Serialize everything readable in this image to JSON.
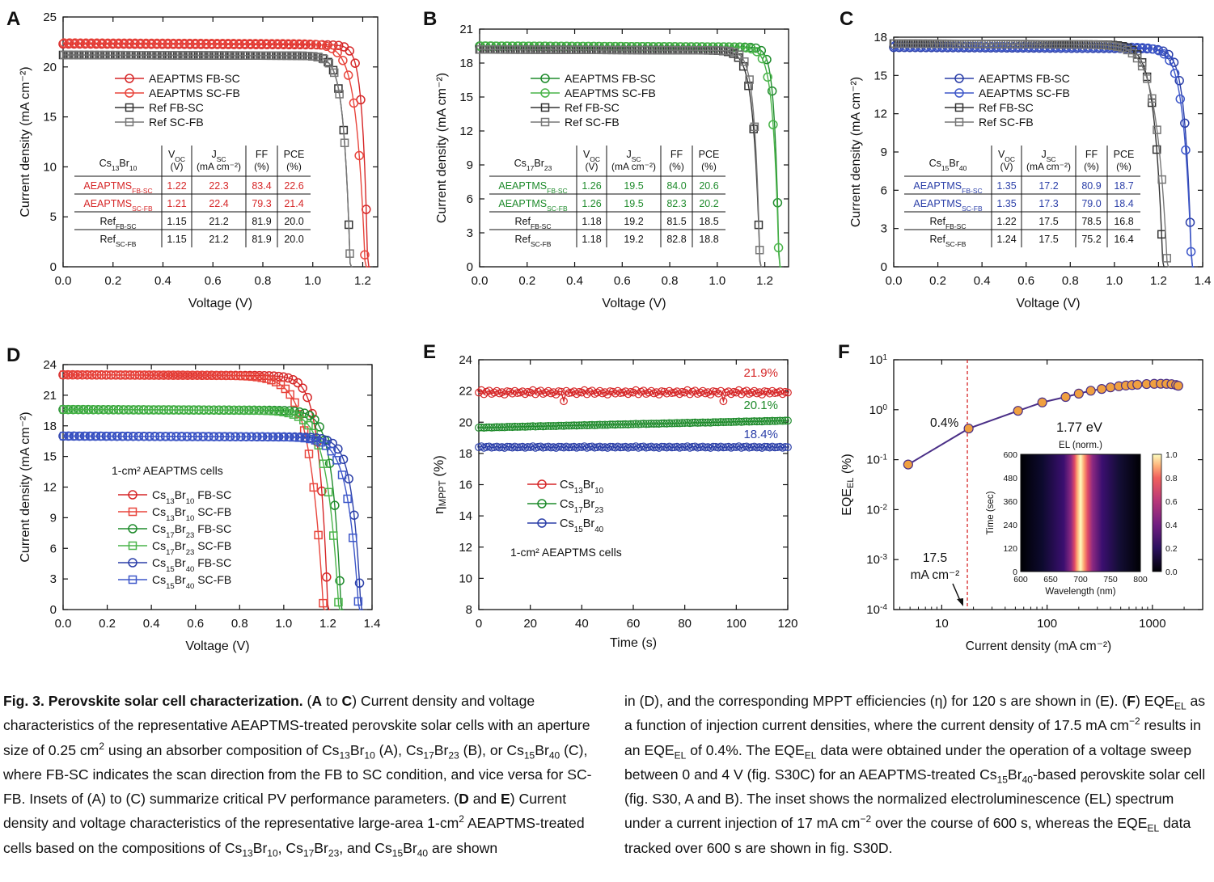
{
  "panels": {
    "A": {
      "letter": "A",
      "xlabel": "Voltage (V)",
      "ylabel": "Current density (mA cm⁻²)",
      "xticks": [
        "0.0",
        "0.2",
        "0.4",
        "0.6",
        "0.8",
        "1.0",
        "1.2"
      ],
      "yticks": [
        "0",
        "5",
        "10",
        "15",
        "20",
        "25"
      ],
      "legend": [
        "AEAPTMS FB-SC",
        "AEAPTMS SC-FB",
        "Ref FB-SC",
        "Ref SC-FB"
      ],
      "table": {
        "corner": [
          "Cs",
          "13",
          "Br",
          "10"
        ],
        "headers": [
          [
            "V",
            "OC",
            "(V)"
          ],
          [
            "J",
            "SC",
            "(mA cm⁻²)"
          ],
          [
            "FF",
            "",
            "(%)"
          ],
          [
            "PCE",
            "",
            "(%)"
          ]
        ],
        "rows": [
          {
            "name": "AEAPTMS",
            "sub": "FB-SC",
            "vals": [
              "1.22",
              "22.3",
              "83.4",
              "22.6"
            ],
            "color": "#d62728"
          },
          {
            "name": "AEAPTMS",
            "sub": "SC-FB",
            "vals": [
              "1.21",
              "22.4",
              "79.3",
              "21.4"
            ],
            "color": "#d62728"
          },
          {
            "name": "Ref",
            "sub": "FB-SC",
            "vals": [
              "1.15",
              "21.2",
              "81.9",
              "20.0"
            ],
            "color": "#111"
          },
          {
            "name": "Ref",
            "sub": "SC-FB",
            "vals": [
              "1.15",
              "21.2",
              "81.9",
              "20.0"
            ],
            "color": "#111"
          }
        ]
      }
    },
    "B": {
      "letter": "B",
      "xlabel": "Voltage (V)",
      "ylabel": "Current density (mA cm⁻²)",
      "xticks": [
        "0.0",
        "0.2",
        "0.4",
        "0.6",
        "0.8",
        "1.0",
        "1.2"
      ],
      "yticks": [
        "0",
        "3",
        "6",
        "9",
        "12",
        "15",
        "18",
        "21"
      ],
      "legend": [
        "AEAPTMS FB-SC",
        "AEAPTMS SC-FB",
        "Ref FB-SC",
        "Ref SC-FB"
      ],
      "table": {
        "corner": [
          "Cs",
          "17",
          "Br",
          "23"
        ],
        "headers": [
          [
            "V",
            "OC",
            "(V)"
          ],
          [
            "J",
            "SC",
            "(mA cm⁻²)"
          ],
          [
            "FF",
            "",
            "(%)"
          ],
          [
            "PCE",
            "",
            "(%)"
          ]
        ],
        "rows": [
          {
            "name": "AEAPTMS",
            "sub": "FB-SC",
            "vals": [
              "1.26",
              "19.5",
              "84.0",
              "20.6"
            ],
            "color": "#1f8b2c"
          },
          {
            "name": "AEAPTMS",
            "sub": "SC-FB",
            "vals": [
              "1.26",
              "19.5",
              "82.3",
              "20.2"
            ],
            "color": "#1f8b2c"
          },
          {
            "name": "Ref",
            "sub": "FB-SC",
            "vals": [
              "1.18",
              "19.2",
              "81.5",
              "18.5"
            ],
            "color": "#111"
          },
          {
            "name": "Ref",
            "sub": "SC-FB",
            "vals": [
              "1.18",
              "19.2",
              "82.8",
              "18.8"
            ],
            "color": "#111"
          }
        ]
      }
    },
    "C": {
      "letter": "C",
      "xlabel": "Voltage (V)",
      "ylabel": "Current density (mA cm⁻²)",
      "xticks": [
        "0.0",
        "0.2",
        "0.4",
        "0.6",
        "0.8",
        "1.0",
        "1.2",
        "1.4"
      ],
      "yticks": [
        "0",
        "3",
        "6",
        "9",
        "12",
        "15",
        "18"
      ],
      "legend": [
        "AEAPTMS FB-SC",
        "AEAPTMS SC-FB",
        "Ref FB-SC",
        "Ref SC-FB"
      ],
      "table": {
        "corner": [
          "Cs",
          "15",
          "Br",
          "40"
        ],
        "headers": [
          [
            "V",
            "OC",
            "(V)"
          ],
          [
            "J",
            "SC",
            "(mA cm⁻²)"
          ],
          [
            "FF",
            "",
            "(%)"
          ],
          [
            "PCE",
            "",
            "(%)"
          ]
        ],
        "rows": [
          {
            "name": "AEAPTMS",
            "sub": "FB-SC",
            "vals": [
              "1.35",
              "17.2",
              "80.9",
              "18.7"
            ],
            "color": "#2b3fa8"
          },
          {
            "name": "AEAPTMS",
            "sub": "SC-FB",
            "vals": [
              "1.35",
              "17.3",
              "79.0",
              "18.4"
            ],
            "color": "#2b3fa8"
          },
          {
            "name": "Ref",
            "sub": "FB-SC",
            "vals": [
              "1.22",
              "17.5",
              "78.5",
              "16.8"
            ],
            "color": "#111"
          },
          {
            "name": "Ref",
            "sub": "SC-FB",
            "vals": [
              "1.24",
              "17.5",
              "75.2",
              "16.4"
            ],
            "color": "#111"
          }
        ]
      }
    },
    "D": {
      "letter": "D",
      "xlabel": "Voltage (V)",
      "ylabel": "Current density (mA cm⁻²)",
      "xticks": [
        "0.0",
        "0.2",
        "0.4",
        "0.6",
        "0.8",
        "1.0",
        "1.2",
        "1.4"
      ],
      "yticks": [
        "0",
        "3",
        "6",
        "9",
        "12",
        "15",
        "18",
        "21",
        "24"
      ],
      "note": "1-cm² AEAPTMS cells",
      "legend": [
        [
          "Cs",
          "13",
          "Br",
          "10",
          " FB-SC"
        ],
        [
          "Cs",
          "13",
          "Br",
          "10",
          " SC-FB"
        ],
        [
          "Cs",
          "17",
          "Br",
          "23",
          " FB-SC"
        ],
        [
          "Cs",
          "17",
          "Br",
          "23",
          " SC-FB"
        ],
        [
          "Cs",
          "15",
          "Br",
          "40",
          " FB-SC"
        ],
        [
          "Cs",
          "15",
          "Br",
          "40",
          " SC-FB"
        ]
      ]
    },
    "E": {
      "letter": "E",
      "xlabel": "Time (s)",
      "ylabel": "η",
      "ylabel_sub": "MPPT",
      "ylabel_unit": " (%)",
      "xticks": [
        "0",
        "20",
        "40",
        "60",
        "80",
        "100",
        "120"
      ],
      "yticks": [
        "8",
        "10",
        "12",
        "14",
        "16",
        "18",
        "20",
        "22",
        "24"
      ],
      "note": "1-cm² AEAPTMS cells",
      "labels": [
        "21.9%",
        "20.1%",
        "18.4%"
      ],
      "legend": [
        [
          "Cs",
          "13",
          "Br",
          "10"
        ],
        [
          "Cs",
          "17",
          "Br",
          "23"
        ],
        [
          "Cs",
          "15",
          "Br",
          "40"
        ]
      ]
    },
    "F": {
      "letter": "F",
      "xlabel": "Current density (mA cm⁻²)",
      "ylabel": "EQE",
      "ylabel_sub": "EL",
      "ylabel_unit": " (%)",
      "xticks": [
        "10",
        "100",
        "1000"
      ],
      "yticks": [
        [
          "10",
          "-4"
        ],
        [
          "10",
          "-3"
        ],
        [
          "10",
          "-2"
        ],
        [
          "10",
          "-1"
        ],
        [
          "10",
          "0"
        ],
        [
          "10",
          "1"
        ]
      ],
      "annot_pct": "0.4%",
      "annot_ev": "1.77 eV",
      "annot_j1": "17.5",
      "annot_j2": "mA cm⁻²",
      "inset": {
        "title": "EL (norm.)",
        "xlabel": "Wavelength (nm)",
        "ylabel": "Time (sec)",
        "xticks": [
          "600",
          "650",
          "700",
          "750",
          "800"
        ],
        "yticks": [
          "0",
          "120",
          "240",
          "360",
          "480",
          "600"
        ],
        "cticks": [
          "0.0",
          "0.2",
          "0.4",
          "0.6",
          "0.8",
          "1.0"
        ]
      }
    }
  },
  "chart_data": [
    {
      "type": "line",
      "panel": "A",
      "xlabel": "Voltage (V)",
      "ylabel": "Current density (mA cm⁻²)",
      "xlim": [
        0,
        1.25
      ],
      "ylim": [
        0,
        25
      ],
      "series": [
        {
          "name": "AEAPTMS FB-SC",
          "color": "#d62728",
          "marker": "circle",
          "jsc": 22.3,
          "voc": 1.22,
          "ff": 83.4
        },
        {
          "name": "AEAPTMS SC-FB",
          "color": "#e8453c",
          "marker": "circle",
          "jsc": 22.4,
          "voc": 1.21,
          "ff": 79.3
        },
        {
          "name": "Ref FB-SC",
          "color": "#333333",
          "marker": "square",
          "jsc": 21.2,
          "voc": 1.15,
          "ff": 81.9
        },
        {
          "name": "Ref SC-FB",
          "color": "#777777",
          "marker": "square",
          "jsc": 21.2,
          "voc": 1.15,
          "ff": 81.9
        }
      ]
    },
    {
      "type": "line",
      "panel": "B",
      "xlabel": "Voltage (V)",
      "ylabel": "Current density (mA cm⁻²)",
      "xlim": [
        0,
        1.3
      ],
      "ylim": [
        0,
        21
      ],
      "series": [
        {
          "name": "AEAPTMS FB-SC",
          "color": "#1f8b2c",
          "marker": "circle",
          "jsc": 19.5,
          "voc": 1.26,
          "ff": 84.0
        },
        {
          "name": "AEAPTMS SC-FB",
          "color": "#49b449",
          "marker": "circle",
          "jsc": 19.5,
          "voc": 1.26,
          "ff": 82.3
        },
        {
          "name": "Ref FB-SC",
          "color": "#333333",
          "marker": "square",
          "jsc": 19.2,
          "voc": 1.18,
          "ff": 81.5
        },
        {
          "name": "Ref SC-FB",
          "color": "#777777",
          "marker": "square",
          "jsc": 19.2,
          "voc": 1.18,
          "ff": 82.8
        }
      ]
    },
    {
      "type": "line",
      "panel": "C",
      "xlabel": "Voltage (V)",
      "ylabel": "Current density (mA cm⁻²)",
      "xlim": [
        0,
        1.4
      ],
      "ylim": [
        0,
        18
      ],
      "series": [
        {
          "name": "AEAPTMS FB-SC",
          "color": "#2b3fa8",
          "marker": "circle",
          "jsc": 17.2,
          "voc": 1.35,
          "ff": 80.9
        },
        {
          "name": "AEAPTMS SC-FB",
          "color": "#3d57c9",
          "marker": "circle",
          "jsc": 17.3,
          "voc": 1.35,
          "ff": 79.0
        },
        {
          "name": "Ref FB-SC",
          "color": "#333333",
          "marker": "square",
          "jsc": 17.5,
          "voc": 1.22,
          "ff": 78.5
        },
        {
          "name": "Ref SC-FB",
          "color": "#777777",
          "marker": "square",
          "jsc": 17.5,
          "voc": 1.24,
          "ff": 75.2
        }
      ]
    },
    {
      "type": "line",
      "panel": "D",
      "xlabel": "Voltage (V)",
      "ylabel": "Current density (mA cm⁻²)",
      "xlim": [
        0,
        1.4
      ],
      "ylim": [
        0,
        24
      ],
      "series": [
        {
          "name": "Cs13Br10 FB-SC",
          "color": "#d62728",
          "marker": "circle",
          "jsc": 23.0,
          "voc": 1.2,
          "ff": 78
        },
        {
          "name": "Cs13Br10 SC-FB",
          "color": "#e8453c",
          "marker": "square",
          "jsc": 23.0,
          "voc": 1.18,
          "ff": 72
        },
        {
          "name": "Cs17Br23 FB-SC",
          "color": "#1f8b2c",
          "marker": "circle",
          "jsc": 19.6,
          "voc": 1.26,
          "ff": 78
        },
        {
          "name": "Cs17Br23 SC-FB",
          "color": "#49b449",
          "marker": "square",
          "jsc": 19.6,
          "voc": 1.25,
          "ff": 74
        },
        {
          "name": "Cs15Br40 FB-SC",
          "color": "#2b3fa8",
          "marker": "circle",
          "jsc": 17.0,
          "voc": 1.35,
          "ff": 78
        },
        {
          "name": "Cs15Br40 SC-FB",
          "color": "#3d57c9",
          "marker": "square",
          "jsc": 17.0,
          "voc": 1.34,
          "ff": 75
        }
      ]
    },
    {
      "type": "line",
      "panel": "E",
      "xlabel": "Time (s)",
      "ylabel": "ηMPPT (%)",
      "xlim": [
        0,
        120
      ],
      "ylim": [
        8,
        24
      ],
      "series": [
        {
          "name": "Cs13Br10",
          "color": "#d62728",
          "level": 21.9
        },
        {
          "name": "Cs17Br23",
          "color": "#1f8b2c",
          "level": 20.1
        },
        {
          "name": "Cs15Br40",
          "color": "#2b3fa8",
          "level": 18.4
        }
      ]
    },
    {
      "type": "line",
      "panel": "F",
      "xlabel": "Current density (mA cm⁻²)",
      "ylabel": "EQEEL (%)",
      "xscale": "log",
      "yscale": "log",
      "xlim": [
        3.5,
        3000
      ],
      "ylim": [
        0.0001,
        10
      ],
      "vline": 17.5,
      "x": [
        4.8,
        18,
        53,
        90,
        150,
        200,
        260,
        330,
        400,
        480,
        560,
        640,
        720,
        800,
        880,
        960,
        1040,
        1120,
        1200,
        1280,
        1360,
        1440,
        1520,
        1600,
        1680,
        1760
      ],
      "y": [
        0.08,
        0.42,
        0.95,
        1.4,
        1.8,
        2.1,
        2.4,
        2.6,
        2.8,
        2.95,
        3.05,
        3.12,
        3.18,
        3.22,
        3.26,
        3.28,
        3.3,
        3.31,
        3.31,
        3.32,
        3.3,
        3.28,
        3.25,
        3.2,
        3.12,
        3.02
      ]
    }
  ],
  "caption": {
    "title": "Fig. 3. Perovskite solar cell characterization.",
    "col1": [
      {
        "t": "b",
        "v": " ("
      },
      {
        "t": "bb",
        "v": "A"
      },
      {
        "t": "n",
        "v": " to "
      },
      {
        "t": "bb",
        "v": "C"
      },
      {
        "t": "n",
        "v": ") Current density and voltage characteristics of the representative AEAPTMS-treated perovskite solar cells with an aperture size of 0.25 cm"
      },
      {
        "t": "sup",
        "v": "2"
      },
      {
        "t": "n",
        "v": " using an absorber composition of Cs"
      },
      {
        "t": "sub",
        "v": "13"
      },
      {
        "t": "n",
        "v": "Br"
      },
      {
        "t": "sub",
        "v": "10"
      },
      {
        "t": "n",
        "v": " (A), Cs"
      },
      {
        "t": "sub",
        "v": "17"
      },
      {
        "t": "n",
        "v": "Br"
      },
      {
        "t": "sub",
        "v": "23"
      },
      {
        "t": "n",
        "v": " (B), or Cs"
      },
      {
        "t": "sub",
        "v": "15"
      },
      {
        "t": "n",
        "v": "Br"
      },
      {
        "t": "sub",
        "v": "40"
      },
      {
        "t": "n",
        "v": " (C), where FB-SC indicates the scan direction from the FB to SC condition, and vice versa for SC-FB. Insets of (A) to (C) summarize critical PV performance parameters. ("
      },
      {
        "t": "bb",
        "v": "D"
      },
      {
        "t": "n",
        "v": " and "
      },
      {
        "t": "bb",
        "v": "E"
      },
      {
        "t": "n",
        "v": ") Current density and voltage characteristics of the representative large-area 1-cm"
      },
      {
        "t": "sup",
        "v": "2"
      },
      {
        "t": "n",
        "v": " AEAPTMS-treated cells based on the compositions of Cs"
      },
      {
        "t": "sub",
        "v": "13"
      },
      {
        "t": "n",
        "v": "Br"
      },
      {
        "t": "sub",
        "v": "10"
      },
      {
        "t": "n",
        "v": ", Cs"
      },
      {
        "t": "sub",
        "v": "17"
      },
      {
        "t": "n",
        "v": "Br"
      },
      {
        "t": "sub",
        "v": "23"
      },
      {
        "t": "n",
        "v": ", and Cs"
      },
      {
        "t": "sub",
        "v": "15"
      },
      {
        "t": "n",
        "v": "Br"
      },
      {
        "t": "sub",
        "v": "40"
      },
      {
        "t": "n",
        "v": " are shown"
      }
    ],
    "col2": [
      {
        "t": "n",
        "v": "in (D), and the corresponding MPPT efficiencies (η) for 120 s are shown in (E). ("
      },
      {
        "t": "bb",
        "v": "F"
      },
      {
        "t": "n",
        "v": ") EQE"
      },
      {
        "t": "sub",
        "v": "EL"
      },
      {
        "t": "n",
        "v": " as a function of injection current densities, where the current density of 17.5 mA cm"
      },
      {
        "t": "sup",
        "v": "−2"
      },
      {
        "t": "n",
        "v": " results in an EQE"
      },
      {
        "t": "sub",
        "v": "EL"
      },
      {
        "t": "n",
        "v": " of 0.4%. The EQE"
      },
      {
        "t": "sub",
        "v": "EL"
      },
      {
        "t": "n",
        "v": " data were obtained under the operation of a voltage sweep between 0 and 4 V (fig. S30C) for an AEAPTMS-treated Cs"
      },
      {
        "t": "sub",
        "v": "15"
      },
      {
        "t": "n",
        "v": "Br"
      },
      {
        "t": "sub",
        "v": "40"
      },
      {
        "t": "n",
        "v": "-based perovskite solar cell (fig. S30, A and B). The inset shows the normalized electroluminescence (EL) spectrum under a current injection of 17 mA cm"
      },
      {
        "t": "sup",
        "v": "−2"
      },
      {
        "t": "n",
        "v": " over the course of 600 s, whereas the EQE"
      },
      {
        "t": "sub",
        "v": "EL"
      },
      {
        "t": "n",
        "v": " data tracked over 600 s are shown in fig. S30D."
      }
    ]
  }
}
